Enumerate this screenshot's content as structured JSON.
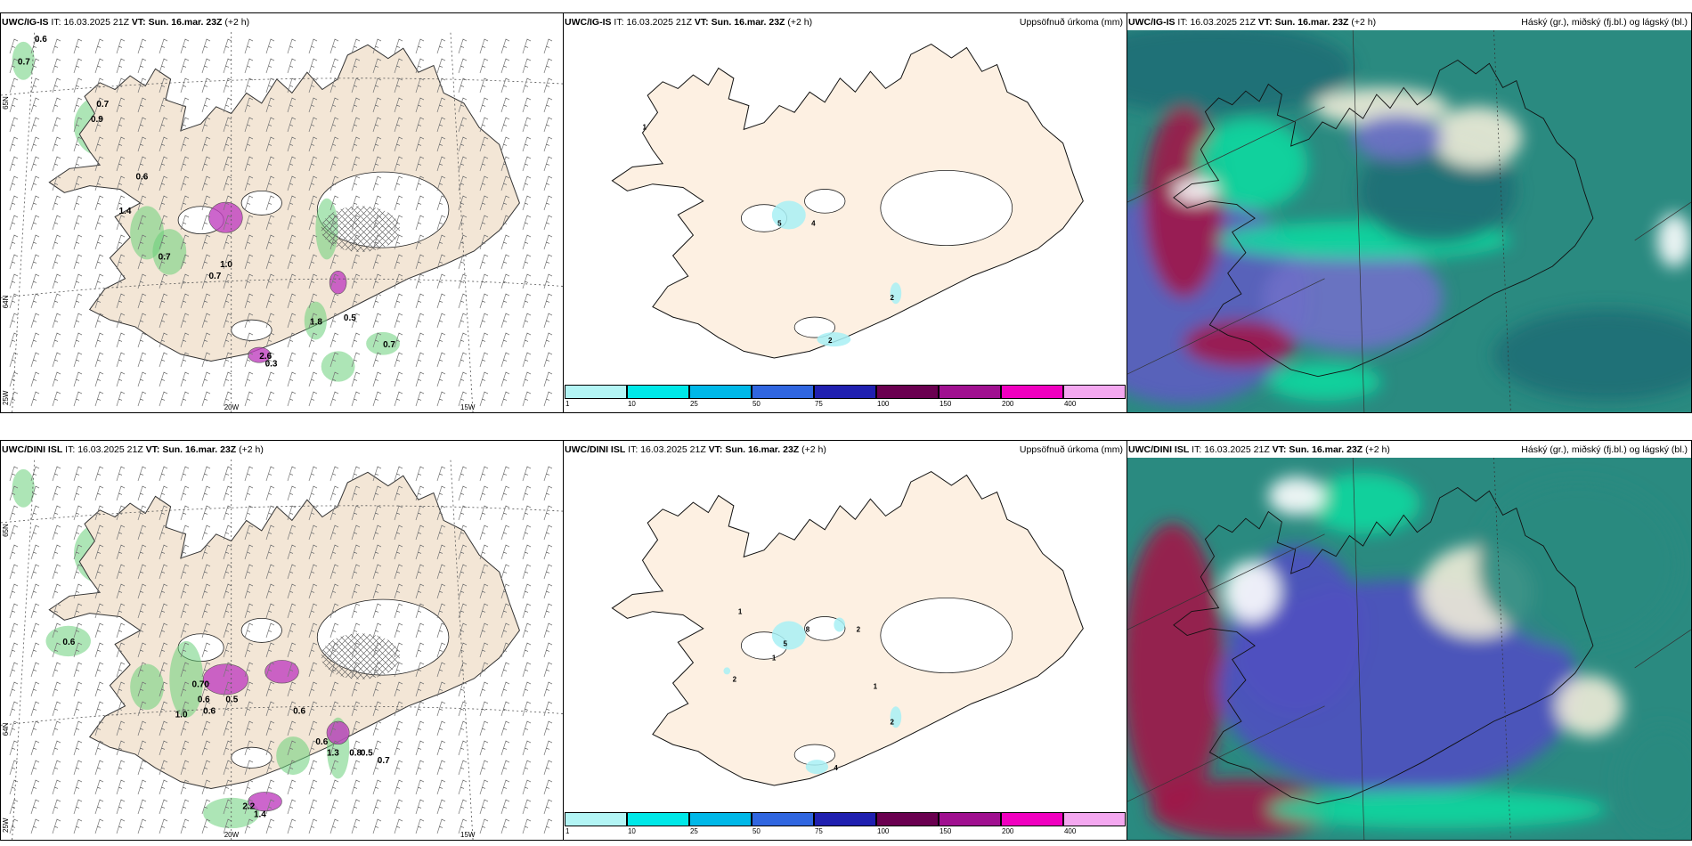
{
  "panels": [
    {
      "id": "ig-wind",
      "model": "UWC/IG-IS",
      "it_label": "IT:",
      "it_value": "16.03.2025 21Z",
      "vt_label": "VT:",
      "vt_value": "Sun. 16.mar. 23Z",
      "lead": "(+2 h)",
      "right_title": "",
      "values": [
        "0.6",
        "0.7",
        "0.7",
        "0.9",
        "0.6",
        "1.4",
        "0.7",
        "1.0",
        "0.7",
        "1.8",
        "0.5",
        "0.7",
        "2.6",
        "0.3"
      ]
    },
    {
      "id": "ig-precip",
      "model": "UWC/IG-IS",
      "it_label": "IT:",
      "it_value": "16.03.2025 21Z",
      "vt_label": "VT:",
      "vt_value": "Sun. 16.mar. 23Z",
      "lead": "(+2 h)",
      "right_title": "Uppsöfnuð úrkoma (mm)",
      "values": [
        "1",
        "2",
        "5",
        "4",
        "2"
      ]
    },
    {
      "id": "ig-cloud",
      "model": "UWC/IG-IS",
      "it_label": "IT:",
      "it_value": "16.03.2025 21Z",
      "vt_label": "VT:",
      "vt_value": "Sun. 16.mar. 23Z",
      "lead": "(+2 h)",
      "right_title": "Háský (gr.), miðský (fj.bl.) og lágský (bl.)",
      "values": []
    },
    {
      "id": "dini-wind",
      "model": "UWC/DINI ISL",
      "it_label": "IT:",
      "it_value": "16.03.2025 21Z",
      "vt_label": "VT:",
      "vt_value": "Sun. 16.mar. 23Z",
      "lead": "(+2 h)",
      "right_title": "",
      "values": [
        "0.6",
        "0.70",
        "0.6",
        "0.6",
        "1.0",
        "0.5",
        "0.6",
        "0.6",
        "1.3",
        "0.8",
        "0.5",
        "0.7",
        "2.2",
        "1.4"
      ]
    },
    {
      "id": "dini-precip",
      "model": "UWC/DINI ISL",
      "it_label": "IT:",
      "it_value": "16.03.2025 21Z",
      "vt_label": "VT:",
      "vt_value": "Sun. 16.mar. 23Z",
      "lead": "(+2 h)",
      "right_title": "Uppsöfnuð úrkoma (mm)",
      "values": [
        "1",
        "2",
        "1",
        "5",
        "8",
        "2",
        "1",
        "2",
        "4"
      ]
    },
    {
      "id": "dini-cloud",
      "model": "UWC/DINI ISL",
      "it_label": "IT:",
      "it_value": "16.03.2025 21Z",
      "vt_label": "VT:",
      "vt_value": "Sun. 16.mar. 23Z",
      "lead": "(+2 h)",
      "right_title": "Háský (gr.), miðský (fj.bl.) og lágský (bl.)",
      "values": []
    }
  ],
  "grid_labels": {
    "lat_65": "65N",
    "lat_64": "64N",
    "lon_25": "25W",
    "lon_20": "20W",
    "lon_15": "15W"
  },
  "colorbar": {
    "ticks": [
      "1",
      "10",
      "25",
      "50",
      "75",
      "100",
      "150",
      "200",
      "400"
    ],
    "colors": [
      "#b3f5f5",
      "#00e8e8",
      "#00b8e8",
      "#3066e0",
      "#2020b0",
      "#6a0050",
      "#a01090",
      "#f000c0",
      "#f4a8f0"
    ]
  },
  "colors": {
    "land": "#f3e6d6",
    "land_precip": "#fdf0e2",
    "snow_green": "#6ad07a",
    "precip_magenta": "#c040c0",
    "cloud_high": "#2a8a80",
    "cloud_mid": "#5050b8",
    "cloud_low": "#a01848",
    "cloud_bright": "#10d8a0"
  }
}
